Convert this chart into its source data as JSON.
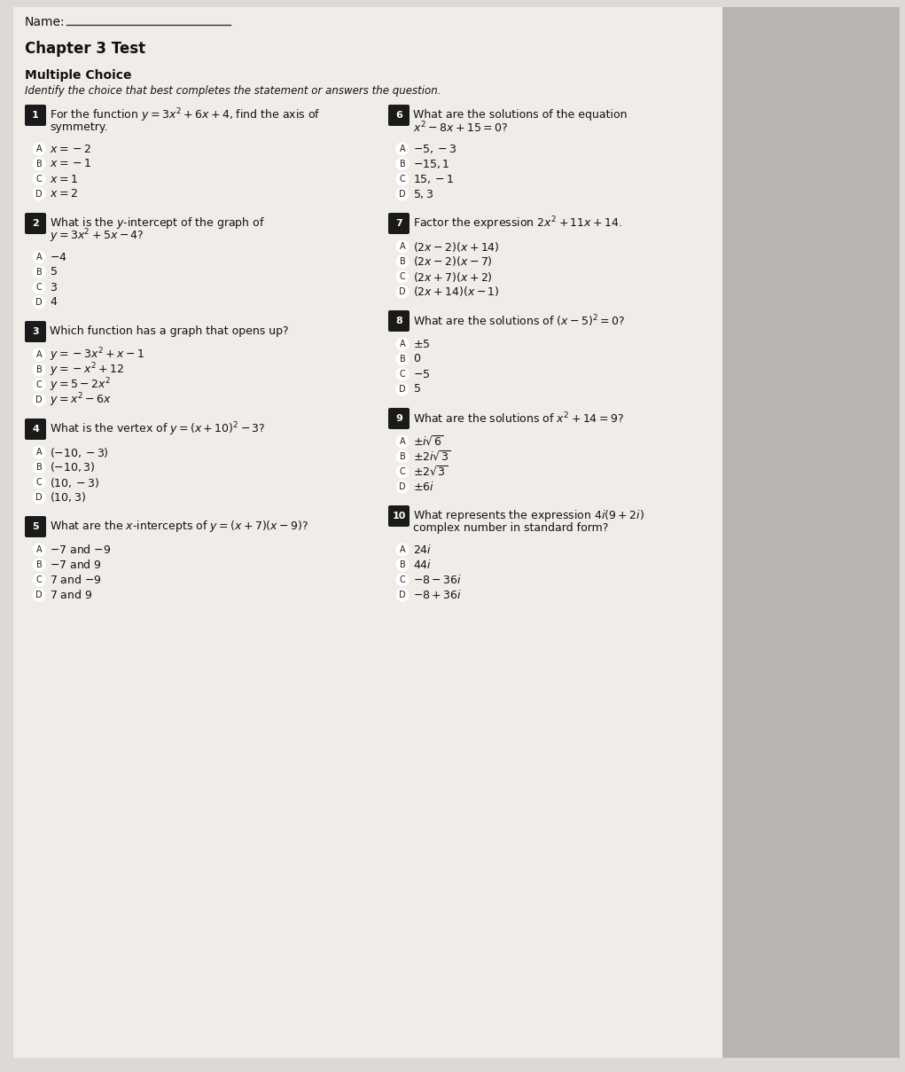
{
  "bg_color": "#ddd9d4",
  "paper_color": "#f0ede8",
  "right_bg_color": "#b8b4b0",
  "q1": {
    "num": "1",
    "line1": "For the function $y = 3x^2 + 6x + 4$, find the axis of",
    "line2": "symmetry.",
    "choices": [
      [
        "A",
        "$x = -2$"
      ],
      [
        "B",
        "$x = -1$"
      ],
      [
        "C",
        "$x = 1$"
      ],
      [
        "D",
        "$x = 2$"
      ]
    ]
  },
  "q2": {
    "num": "2",
    "line1": "What is the $y$-intercept of the graph of",
    "line2": "$y = 3x^2 + 5x - 4$?",
    "choices": [
      [
        "A",
        "$-4$"
      ],
      [
        "B",
        "$5$"
      ],
      [
        "C",
        "$3$"
      ],
      [
        "D",
        "$4$"
      ]
    ]
  },
  "q3": {
    "num": "3",
    "line1": "Which function has a graph that opens up?",
    "line2": null,
    "choices": [
      [
        "A",
        "$y = -3x^2 + x - 1$"
      ],
      [
        "B",
        "$y = -x^2 + 12$"
      ],
      [
        "C",
        "$y = 5 - 2x^2$"
      ],
      [
        "D",
        "$y = x^2 - 6x$"
      ]
    ]
  },
  "q4": {
    "num": "4",
    "line1": "What is the vertex of $y = (x + 10)^2 - 3$?",
    "line2": null,
    "choices": [
      [
        "A",
        "$(-10, -3)$"
      ],
      [
        "B",
        "$(-10, 3)$"
      ],
      [
        "C",
        "$(10, -3)$"
      ],
      [
        "D",
        "$(10, 3)$"
      ]
    ]
  },
  "q5": {
    "num": "5",
    "line1": "What are the $x$-intercepts of $y = (x+7)(x-9)$?",
    "line2": null,
    "choices": [
      [
        "A",
        "$-7$ and $-9$"
      ],
      [
        "B",
        "$-7$ and $9$"
      ],
      [
        "C",
        "$7$ and $-9$"
      ],
      [
        "D",
        "$7$ and $9$"
      ]
    ]
  },
  "q6": {
    "num": "6",
    "line1": "What are the solutions of the equation",
    "line2": "$x^2 - 8x + 15 = 0$?",
    "choices": [
      [
        "A",
        "$-5, -3$"
      ],
      [
        "B",
        "$-15, 1$"
      ],
      [
        "C",
        "$15, -1$"
      ],
      [
        "D",
        "$5, 3$"
      ]
    ]
  },
  "q7": {
    "num": "7",
    "line1": "Factor the expression $2x^2 + 11x + 14$.",
    "line2": null,
    "choices": [
      [
        "A",
        "$(2x-2)(x+14)$"
      ],
      [
        "B",
        "$(2x-2)(x-7)$"
      ],
      [
        "C",
        "$(2x+7)(x+2)$"
      ],
      [
        "D",
        "$(2x+14)(x-1)$"
      ]
    ]
  },
  "q8": {
    "num": "8",
    "line1": "What are the solutions of $(x-5)^2 = 0$?",
    "line2": null,
    "choices": [
      [
        "A",
        "$\\pm 5$"
      ],
      [
        "B",
        "$0$"
      ],
      [
        "C",
        "$-5$"
      ],
      [
        "D",
        "$5$"
      ]
    ]
  },
  "q9": {
    "num": "9",
    "line1": "What are the solutions of $x^2 + 14 = 9$?",
    "line2": null,
    "choices": [
      [
        "A",
        "$\\pm i\\sqrt{6}$"
      ],
      [
        "B",
        "$\\pm 2i\\sqrt{3}$"
      ],
      [
        "C",
        "$\\pm 2\\sqrt{3}$"
      ],
      [
        "D",
        "$\\pm 6i$"
      ]
    ]
  },
  "q10": {
    "num": "10",
    "line1": "What represents the expression $4i(9+2i)$",
    "line2": "complex number in standard form?",
    "choices": [
      [
        "A",
        "$24i$"
      ],
      [
        "B",
        "$44i$"
      ],
      [
        "C",
        "$-8-36i$"
      ],
      [
        "D",
        "$-8+36i$"
      ]
    ]
  }
}
